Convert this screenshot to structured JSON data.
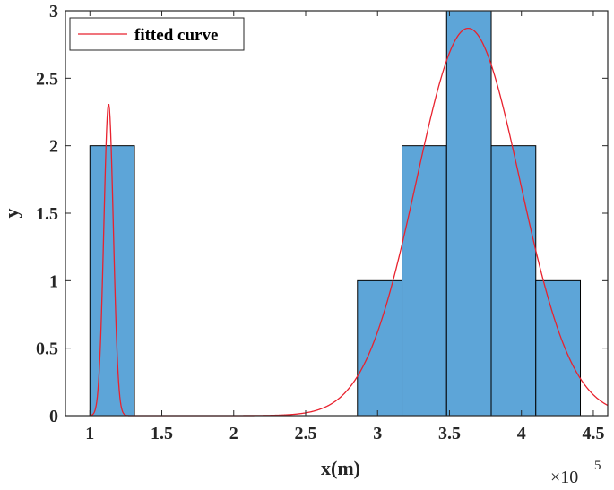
{
  "chart_data": {
    "type": "bar",
    "xlabel": "x(m)",
    "ylabel": "y",
    "x_exponent_base": "×10",
    "x_exponent_power": "5",
    "xlim": [
      0.83,
      4.6
    ],
    "ylim": [
      0,
      3
    ],
    "x_scale_factor": 100000,
    "xticks": [
      1,
      1.5,
      2,
      2.5,
      3,
      3.5,
      4,
      4.5
    ],
    "xtick_labels": [
      "1",
      "1.5",
      "2",
      "2.5",
      "3",
      "3.5",
      "4",
      "4.5"
    ],
    "yticks": [
      0,
      0.5,
      1,
      1.5,
      2,
      2.5,
      3
    ],
    "ytick_labels": [
      "0",
      "0.5",
      "1",
      "1.5",
      "2",
      "2.5",
      "3"
    ],
    "bars": [
      {
        "x0": 1.0,
        "x1": 1.31,
        "value": 2
      },
      {
        "x0": 2.86,
        "x1": 3.17,
        "value": 1
      },
      {
        "x0": 3.17,
        "x1": 3.48,
        "value": 2
      },
      {
        "x0": 3.48,
        "x1": 3.79,
        "value": 3
      },
      {
        "x0": 3.79,
        "x1": 4.1,
        "value": 2
      },
      {
        "x0": 4.1,
        "x1": 4.41,
        "value": 1
      }
    ],
    "fitted_curve": {
      "name": "fitted curve",
      "components": [
        {
          "amplitude": 2.31,
          "center": 1.13,
          "sigma": 0.033
        },
        {
          "amplitude": 2.87,
          "center": 3.63,
          "sigma": 0.36
        }
      ],
      "x_range": [
        1.0,
        4.6
      ]
    },
    "legend": {
      "position": "top-left",
      "entries": [
        "fitted curve"
      ]
    },
    "grid": false
  },
  "colors": {
    "bar_fill": "#5DA5D8",
    "bar_edge": "#000000",
    "curve": "#E8222E",
    "axis": "#262626"
  }
}
